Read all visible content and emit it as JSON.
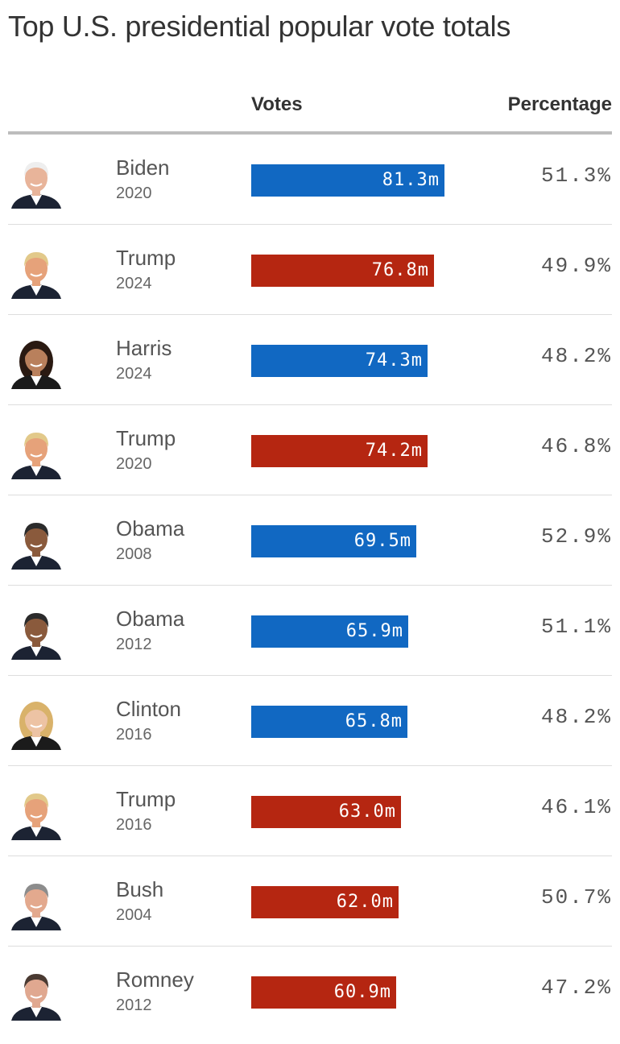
{
  "title": "Top U.S. presidential popular vote totals",
  "headers": {
    "votes": "Votes",
    "percentage": "Percentage"
  },
  "colors": {
    "dem": "#1168c2",
    "rep": "#b52611",
    "text": "#333333",
    "rule": "#bdbdbd"
  },
  "chart_data": {
    "type": "bar",
    "title": "Top U.S. presidential popular vote totals",
    "unit": "m",
    "categories": [
      "Biden 2020",
      "Trump 2024",
      "Harris 2024",
      "Trump 2020",
      "Obama 2008",
      "Obama 2012",
      "Clinton 2016",
      "Trump 2016",
      "Bush 2004",
      "Romney 2012"
    ],
    "rows": [
      {
        "name": "Biden",
        "year": "2020",
        "party": "dem",
        "votes": 81.3,
        "votes_label": "81.3m",
        "percentage": "51.3%",
        "avatar": "biden-portrait"
      },
      {
        "name": "Trump",
        "year": "2024",
        "party": "rep",
        "votes": 76.8,
        "votes_label": "76.8m",
        "percentage": "49.9%",
        "avatar": "trump-portrait"
      },
      {
        "name": "Harris",
        "year": "2024",
        "party": "dem",
        "votes": 74.3,
        "votes_label": "74.3m",
        "percentage": "48.2%",
        "avatar": "harris-portrait"
      },
      {
        "name": "Trump",
        "year": "2020",
        "party": "rep",
        "votes": 74.2,
        "votes_label": "74.2m",
        "percentage": "46.8%",
        "avatar": "trump-portrait"
      },
      {
        "name": "Obama",
        "year": "2008",
        "party": "dem",
        "votes": 69.5,
        "votes_label": "69.5m",
        "percentage": "52.9%",
        "avatar": "obama-portrait"
      },
      {
        "name": "Obama",
        "year": "2012",
        "party": "dem",
        "votes": 65.9,
        "votes_label": "65.9m",
        "percentage": "51.1%",
        "avatar": "obama-portrait"
      },
      {
        "name": "Clinton",
        "year": "2016",
        "party": "dem",
        "votes": 65.8,
        "votes_label": "65.8m",
        "percentage": "48.2%",
        "avatar": "clinton-portrait"
      },
      {
        "name": "Trump",
        "year": "2016",
        "party": "rep",
        "votes": 63.0,
        "votes_label": "63.0m",
        "percentage": "46.1%",
        "avatar": "trump-portrait"
      },
      {
        "name": "Bush",
        "year": "2004",
        "party": "rep",
        "votes": 62.0,
        "votes_label": "62.0m",
        "percentage": "50.7%",
        "avatar": "bush-portrait"
      },
      {
        "name": "Romney",
        "year": "2012",
        "party": "rep",
        "votes": 60.9,
        "votes_label": "60.9m",
        "percentage": "47.2%",
        "avatar": "romney-portrait"
      }
    ]
  }
}
